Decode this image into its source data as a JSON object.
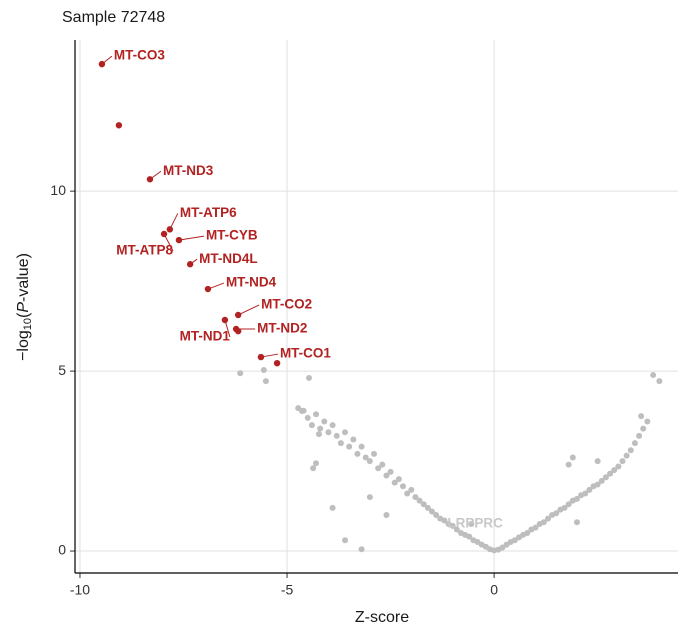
{
  "chart_data": {
    "type": "scatter",
    "title": "Sample 72748",
    "xlabel": "Z-score",
    "ylabel": {
      "prefix": "−log",
      "sub": "10",
      "open": "(",
      "italic": "P",
      "rest": "-value)"
    },
    "xlim": [
      -10.12,
      4.44
    ],
    "ylim": [
      -0.61,
      14.2
    ],
    "xticks": [
      -10,
      -5,
      0
    ],
    "yticks": [
      0,
      5,
      10
    ],
    "grid": true,
    "series": [
      {
        "color": "#bebebe",
        "x": [
          -4.6,
          -4.5,
          -4.4,
          -4.3,
          -4.2,
          -4.1,
          -4.0,
          -3.9,
          -3.8,
          -3.7,
          -3.6,
          -3.5,
          -3.4,
          -3.3,
          -3.2,
          -3.1,
          -3.0,
          -2.9,
          -2.8,
          -2.7,
          -2.6,
          -2.5,
          -2.4,
          -2.3,
          -2.2,
          -2.1,
          -2.0,
          -1.9,
          -1.8,
          -1.7,
          -1.6,
          -1.5,
          -1.4,
          -1.3,
          -1.2,
          -1.1,
          -1.0,
          -0.9,
          -0.8,
          -0.7,
          -0.6,
          -0.5,
          -0.4,
          -0.3,
          -0.2,
          -0.1,
          0,
          -6.13,
          -5.56,
          -5.51,
          -4.47,
          -4.73,
          -4.64,
          -4.23,
          -4.3,
          -4.37,
          -3.6,
          -3.2,
          -3.9,
          -3.0,
          -2.6,
          0.1,
          0.2,
          0.3,
          0.4,
          0.5,
          0.6,
          0.7,
          0.8,
          0.9,
          1.0,
          1.1,
          1.2,
          1.3,
          1.4,
          1.5,
          1.6,
          1.7,
          1.8,
          1.9,
          2.0,
          2.1,
          2.2,
          2.3,
          2.4,
          2.5,
          2.6,
          2.7,
          2.8,
          2.9,
          3.0,
          3.1,
          3.2,
          3.3,
          3.4,
          3.5,
          3.6,
          3.7,
          3.84,
          3.99,
          3.55,
          1.8,
          1.9,
          2.5,
          2.0
        ],
        "values": [
          3.9,
          3.7,
          3.5,
          3.8,
          3.4,
          3.6,
          3.3,
          3.5,
          3.2,
          3.0,
          3.3,
          2.9,
          3.1,
          2.7,
          2.9,
          2.6,
          2.5,
          2.7,
          2.3,
          2.4,
          2.1,
          2.2,
          1.9,
          2.0,
          1.8,
          1.6,
          1.7,
          1.5,
          1.4,
          1.3,
          1.2,
          1.1,
          1.0,
          0.9,
          0.85,
          0.75,
          0.7,
          0.6,
          0.5,
          0.45,
          0.4,
          0.3,
          0.25,
          0.18,
          0.12,
          0.05,
          0.02,
          4.94,
          5.03,
          4.72,
          4.81,
          3.97,
          3.89,
          3.25,
          2.44,
          2.3,
          0.3,
          0.05,
          1.2,
          1.5,
          1.0,
          0.04,
          0.1,
          0.18,
          0.25,
          0.3,
          0.38,
          0.45,
          0.5,
          0.6,
          0.65,
          0.75,
          0.8,
          0.9,
          1.0,
          1.05,
          1.15,
          1.2,
          1.3,
          1.4,
          1.45,
          1.55,
          1.6,
          1.7,
          1.8,
          1.85,
          1.95,
          2.05,
          2.15,
          2.25,
          2.35,
          2.5,
          2.65,
          2.8,
          3.0,
          3.2,
          3.4,
          3.6,
          4.89,
          4.72,
          3.75,
          2.4,
          2.6,
          2.5,
          0.8
        ]
      },
      {
        "color": "#bebebe",
        "x": [
          -0.55
        ],
        "values": [
          0.75
        ],
        "labels": [
          "LRPPRC"
        ]
      },
      {
        "color": "#b22222",
        "x": [
          -9.47,
          -9.06,
          -8.31,
          -7.83,
          -7.97,
          -7.61,
          -7.34,
          -6.91,
          -6.18,
          -6.5,
          -6.23,
          -6.18,
          -5.63,
          -5.24
        ],
        "values": [
          13.53,
          11.83,
          10.33,
          8.94,
          8.81,
          8.64,
          7.97,
          7.28,
          6.56,
          6.42,
          6.17,
          6.11,
          5.39,
          5.22
        ],
        "labels": [
          "MT-CO3",
          null,
          "MT-ND3",
          "MT-ATP6",
          "MT-ATP8",
          "MT-CYB",
          "MT-ND4L",
          "MT-ND4",
          "MT-CO2",
          "MT-ND1",
          "MT-ND2",
          null,
          "MT-CO1",
          null
        ]
      }
    ]
  }
}
